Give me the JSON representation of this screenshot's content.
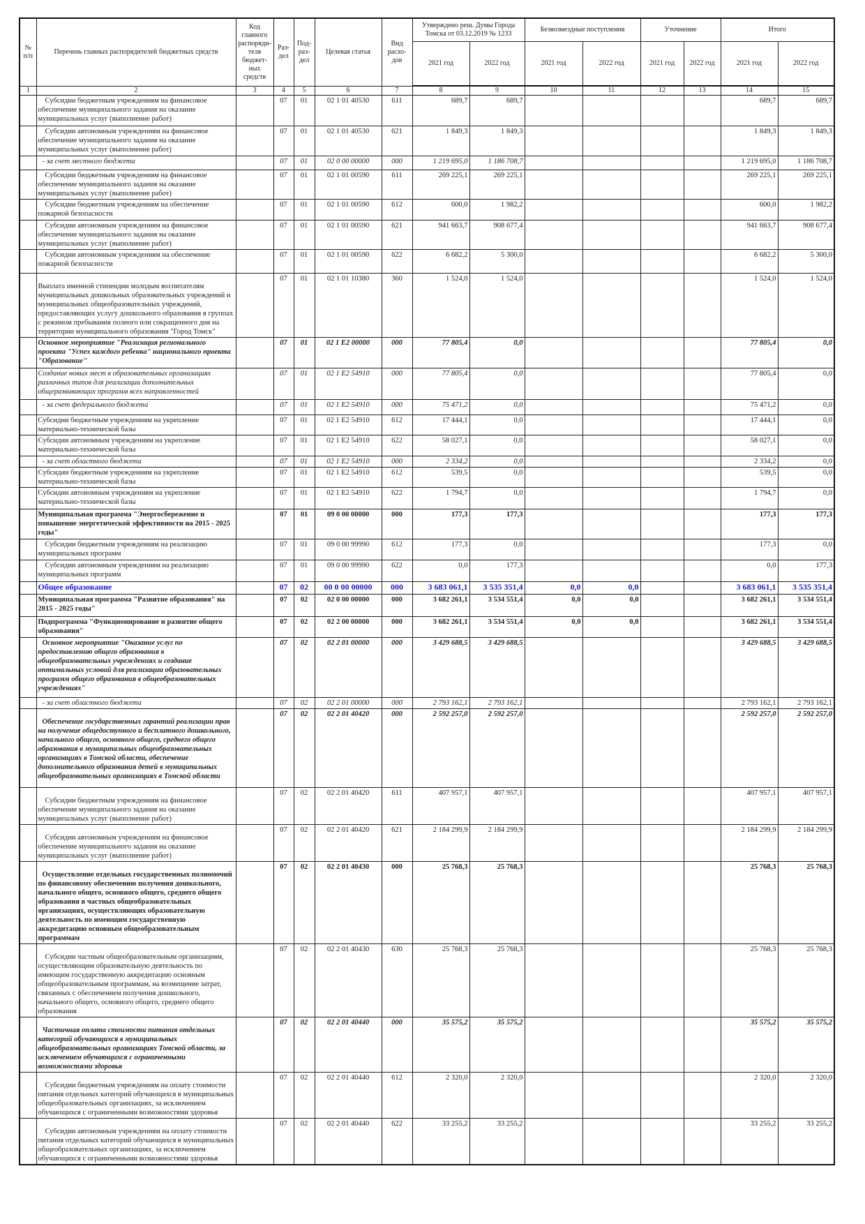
{
  "header": {
    "col1": "№ п/п",
    "col2": "Перечень главных распорядителей бюджетных средств",
    "col3": "Код главного распоряди-теля бюджет-ных средств",
    "col4": "Раз-дел",
    "col5": "Под-раз-дел",
    "col6": "Целевая статья",
    "col7": "Вид расхо-дов",
    "group_approved": "Утверждено реш. Думы Города Томска от 03.12.2019 № 1233",
    "group_free": "Безвозмездные поступления",
    "group_clarify": "Уточнение",
    "group_total": "Итого",
    "year_2021": "2021 год",
    "year_2022": "2022 год",
    "col_numbers": [
      "1",
      "2",
      "3",
      "4",
      "5",
      "6",
      "7",
      "8",
      "9",
      "10",
      "11",
      "12",
      "13",
      "14",
      "15"
    ]
  },
  "rows": [
    {
      "style": "normal",
      "indent": "ind",
      "desc": "Субсидии бюджетным учреждениям на финансовое обеспечение муниципального задания на оказание муниципальных услуг (выполнение работ)",
      "razdel": "07",
      "podrazdel": "01",
      "cs": "02 1 01 40530",
      "vr": "611",
      "v": [
        "689,7",
        "689,7",
        "",
        "",
        "",
        "",
        "689,7",
        "689,7"
      ]
    },
    {
      "style": "normal",
      "indent": "ind",
      "desc": "Субсидии автономным учреждениям на финансовое обеспечение муниципального задания на оказание муниципальных услуг (выполнение работ)",
      "razdel": "07",
      "podrazdel": "01",
      "cs": "02 1 01 40530",
      "vr": "621",
      "v": [
        "1 849,3",
        "1 849,3",
        "",
        "",
        "",
        "",
        "1 849,3",
        "1 849,3"
      ]
    },
    {
      "style": "italic",
      "indent": "ind-s",
      "desc": "- за счет местного бюджета",
      "razdel": "07",
      "podrazdel": "01",
      "cs": "02 0 00 00000",
      "vr": "000",
      "v": [
        "1 219 695,0",
        "1 186 708,7",
        "",
        "",
        "",
        "",
        "1 219 695,0",
        "1 186 708,7"
      ]
    },
    {
      "style": "normal",
      "indent": "ind",
      "desc": "Субсидии бюджетным учреждениям на финансовое обеспечение муниципального задания на оказание муниципальных услуг (выполнение работ)",
      "razdel": "07",
      "podrazdel": "01",
      "cs": "02 1 01 00590",
      "vr": "611",
      "v": [
        "269 225,1",
        "269 225,1",
        "",
        "",
        "",
        "",
        "269 225,1",
        "269 225,1"
      ]
    },
    {
      "style": "normal",
      "indent": "ind",
      "desc": "Субсидии бюджетным учреждениям на обеспечение пожарной безопасности",
      "razdel": "07",
      "podrazdel": "01",
      "cs": "02 1 01 00590",
      "vr": "612",
      "v": [
        "600,0",
        "1 982,2",
        "",
        "",
        "",
        "",
        "600,0",
        "1 982,2"
      ]
    },
    {
      "style": "normal",
      "indent": "ind",
      "desc": "Субсидии автономным учреждениям на финансовое обеспечение муниципального задания на оказание муниципальных услуг (выполнение работ)",
      "razdel": "07",
      "podrazdel": "01",
      "cs": "02 1 01 00590",
      "vr": "621",
      "v": [
        "941 663,7",
        "908 677,4",
        "",
        "",
        "",
        "",
        "941 663,7",
        "908 677,4"
      ]
    },
    {
      "style": "normal",
      "indent": "ind",
      "desc": "Субсидии автономным учреждениям на обеспечение пожарной безопасности",
      "razdel": "07",
      "podrazdel": "01",
      "cs": "02 1 01 00590",
      "vr": "622",
      "v": [
        "6 682,2",
        "5 300,0",
        "",
        "",
        "",
        "",
        "6 682,2",
        "5 300,0"
      ]
    },
    {
      "style": "normal",
      "indent": "pt",
      "desc": "Выплата именной стипендии молодым воспитателям муниципальных дошкольных образовательных учреждений и муниципальных общеобразовательных учреждений, предоставляющих услугу дошкольного образования в группах с режимом пребывания полного или сокращенного дня на территории муниципального образования \"Город Томск\"",
      "razdel": "07",
      "podrazdel": "01",
      "cs": "02 1 01 10380",
      "vr": "360",
      "v": [
        "1 524,0",
        "1 524,0",
        "",
        "",
        "",
        "",
        "1 524,0",
        "1 524,0"
      ]
    },
    {
      "style": "bolditalic",
      "indent": "",
      "desc": "Основное мероприятие \"Реализация регионального проекта \"Успех каждого ребенка\" национального проекта \"Образование\"",
      "razdel": "07",
      "podrazdel": "01",
      "cs": "02 1 E2 00000",
      "vr": "000",
      "v": [
        "77 805,4",
        "0,0",
        "",
        "",
        "",
        "",
        "77 805,4",
        "0,0"
      ]
    },
    {
      "style": "italic",
      "indent": "",
      "desc": "Создание новых мест в образовательных организациях различных типов для реализации дополнительных общеразвивающих программ всех направленностей",
      "razdel": "07",
      "podrazdel": "01",
      "cs": "02 1 E2 54910",
      "vr": "000",
      "v": [
        "77 805,4",
        "0,0",
        "",
        "",
        "",
        "",
        "77 805,4",
        "0,0"
      ]
    },
    {
      "style": "italic",
      "indent": "ind-s",
      "desc": "- за счет федерального бюджета",
      "razdel": "07",
      "podrazdel": "01",
      "cs": "02 1 E2 54910",
      "vr": "000",
      "v": [
        "75 471,2",
        "0,0",
        "",
        "",
        "",
        "",
        "75 471,2",
        "0,0"
      ]
    },
    {
      "style": "normal",
      "indent": "",
      "desc": "Субсидии бюджетным учреждениям на укрепление материально-технической базы",
      "razdel": "07",
      "podrazdel": "01",
      "cs": "02 1 E2 54910",
      "vr": "612",
      "v": [
        "17 444,1",
        "0,0",
        "",
        "",
        "",
        "",
        "17 444,1",
        "0,0"
      ]
    },
    {
      "style": "normal",
      "indent": "",
      "desc": "Субсидии автономным учреждениям на укрепление материально-технической базы",
      "razdel": "07",
      "podrazdel": "01",
      "cs": "02 1 E2 54910",
      "vr": "622",
      "v": [
        "58 027,1",
        "0,0",
        "",
        "",
        "",
        "",
        "58 027,1",
        "0,0"
      ]
    },
    {
      "style": "italic",
      "indent": "ind-s",
      "desc": "- за счет областного бюджета",
      "razdel": "07",
      "podrazdel": "01",
      "cs": "02 1 E2 54910",
      "vr": "000",
      "v": [
        "2 334,2",
        "0,0",
        "",
        "",
        "",
        "",
        "2 334,2",
        "0,0"
      ]
    },
    {
      "style": "normal",
      "indent": "",
      "desc": "Субсидии бюджетным учреждениям на укрепление материально-технической базы",
      "razdel": "07",
      "podrazdel": "01",
      "cs": "02 1 E2 54910",
      "vr": "612",
      "v": [
        "539,5",
        "0,0",
        "",
        "",
        "",
        "",
        "539,5",
        "0,0"
      ]
    },
    {
      "style": "normal",
      "indent": "",
      "desc": "Субсидии автономным учреждениям на укрепление материально-технической базы",
      "razdel": "07",
      "podrazdel": "01",
      "cs": "02 1 E2 54910",
      "vr": "622",
      "v": [
        "1 794,7",
        "0,0",
        "",
        "",
        "",
        "",
        "1 794,7",
        "0,0"
      ]
    },
    {
      "style": "bold",
      "indent": "",
      "desc": "Муниципальная программа \"Энергосбережение и повышение энергетической эффективности на 2015 - 2025 годы\"",
      "razdel": "07",
      "podrazdel": "01",
      "cs": "09 0 00 00000",
      "vr": "000",
      "v": [
        "177,3",
        "177,3",
        "",
        "",
        "",
        "",
        "177,3",
        "177,3"
      ]
    },
    {
      "style": "normal",
      "indent": "ind",
      "desc": "Субсидии бюджетным учреждениям на реализацию муниципальных программ",
      "razdel": "07",
      "podrazdel": "01",
      "cs": "09 0 00 99990",
      "vr": "612",
      "v": [
        "177,3",
        "0,0",
        "",
        "",
        "",
        "",
        "177,3",
        "0,0"
      ]
    },
    {
      "style": "normal",
      "indent": "ind",
      "desc": "Субсидии автономным учреждениям на реализацию муниципальных программ",
      "razdel": "07",
      "podrazdel": "01",
      "cs": "09 0 00 99990",
      "vr": "622",
      "v": [
        "0,0",
        "177,3",
        "",
        "",
        "",
        "",
        "0,0",
        "177,3"
      ]
    },
    {
      "style": "blue",
      "indent": "",
      "desc": "Общее образование",
      "razdel": "07",
      "podrazdel": "02",
      "cs": "00 0 00 00000",
      "vr": "000",
      "v": [
        "3 683 061,1",
        "3 535 351,4",
        "0,0",
        "0,0",
        "",
        "",
        "3 683 061,1",
        "3 535 351,4"
      ]
    },
    {
      "style": "bold",
      "indent": "",
      "desc": "Муниципальная программа \"Развитие образования\" на 2015 - 2025 годы\"",
      "razdel": "07",
      "podrazdel": "02",
      "cs": "02 0 00 00000",
      "vr": "000",
      "v": [
        "3 682 261,1",
        "3 534 551,4",
        "0,0",
        "0,0",
        "",
        "",
        "3 682 261,1",
        "3 534 551,4"
      ]
    },
    {
      "style": "bold",
      "indent": "",
      "desc": "Подпрограмма \"Функционирование и развитие общего образования\"",
      "razdel": "07",
      "podrazdel": "02",
      "cs": "02 2 00 00000",
      "vr": "000",
      "v": [
        "3 682 261,1",
        "3 534 551,4",
        "0,0",
        "0,0",
        "",
        "",
        "3 682 261,1",
        "3 534 551,4"
      ]
    },
    {
      "style": "bolditalic",
      "indent": "ind-s",
      "desc": "Основное мероприятие \"Оказание услуг по предоставлению общего образования в общеобразовательных учреждениях и создание оптимальных условий для реализации образовательных программ общего образования в общеобразовательных учреждениях\"",
      "razdel": "07",
      "podrazdel": "02",
      "cs": "02 2 01 00000",
      "vr": "000",
      "v": [
        "3 429 688,5",
        "3 429 688,5",
        "",
        "",
        "",
        "",
        "3 429 688,5",
        "3 429 688,5"
      ]
    },
    {
      "style": "italic",
      "indent": "ind-s",
      "desc": "- за счет областного бюджета",
      "razdel": "07",
      "podrazdel": "02",
      "cs": "02 2 01 00000",
      "vr": "000",
      "v": [
        "2 793 162,1",
        "2 793 162,1",
        "",
        "",
        "",
        "",
        "2 793 162,1",
        "2 793 162,1"
      ]
    },
    {
      "style": "bolditalic",
      "indent": "pt ind-s",
      "desc": "Обеспечение государственных гарантий реализации прав на получение общедоступного и бесплатного дошкольного, начального общего, основного общего, среднего общего образования в муниципальных общеобразовательных организациях в Томской области, обеспечение дополнительного образования детей в муниципальных общеобразовательных организациях в Томской области",
      "razdel": "07",
      "podrazdel": "02",
      "cs": "02 2 01 40420",
      "vr": "000",
      "v": [
        "2 592 257,0",
        "2 592 257,0",
        "",
        "",
        "",
        "",
        "2 592 257,0",
        "2 592 257,0"
      ]
    },
    {
      "style": "normal",
      "indent": "pt ind",
      "desc": "Субсидии бюджетным учреждениям на финансовое обеспечение муниципального задания на оказание муниципальных услуг (выполнение работ)",
      "razdel": "07",
      "podrazdel": "02",
      "cs": "02 2 01 40420",
      "vr": "611",
      "v": [
        "407 957,1",
        "407 957,1",
        "",
        "",
        "",
        "",
        "407 957,1",
        "407 957,1"
      ]
    },
    {
      "style": "normal",
      "indent": "pt ind",
      "desc": "Субсидии автономным учреждениям на финансовое обеспечение муниципального задания на оказание муниципальных услуг (выполнение работ)",
      "razdel": "07",
      "podrazdel": "02",
      "cs": "02 2 01 40420",
      "vr": "621",
      "v": [
        "2 184 299,9",
        "2 184 299,9",
        "",
        "",
        "",
        "",
        "2 184 299,9",
        "2 184 299,9"
      ]
    },
    {
      "style": "bold",
      "indent": "pt ind-s",
      "desc": "Осуществление отдельных государственных полномочий по финансовому обеспечению получения дошкольного, начального общего, основного общего, среднего общего образования в частных общеобразовательных организациях, осуществляющих образовательную деятельность по имеющим государственную аккредитацию основным общеобразовательным программам",
      "razdel": "07",
      "podrazdel": "02",
      "cs": "02 2 01 40430",
      "vr": "000",
      "v": [
        "25 768,3",
        "25 768,3",
        "",
        "",
        "",
        "",
        "25 768,3",
        "25 768,3"
      ]
    },
    {
      "style": "normal",
      "indent": "pt ind",
      "desc": "Субсидии частным общеобразовательным организациям, осуществляющим образовательную деятельность по имеющим государственную аккредитацию основным общеобразовательным программам, на возмещение затрат, связанных с обеспечением получения дошкольного, начального общего, основного общего, среднего общего образования",
      "razdel": "07",
      "podrazdel": "02",
      "cs": "02 2 01 40430",
      "vr": "630",
      "v": [
        "25 768,3",
        "25 768,3",
        "",
        "",
        "",
        "",
        "25 768,3",
        "25 768,3"
      ]
    },
    {
      "style": "bolditalic",
      "indent": "pt ind-s",
      "desc": "Частичная оплата стоимости питания отдельных категорий обучающихся в муниципальных общеобразовательных организациях Томской области, за исключением обучающихся с ограниченными возможностями здоровья",
      "razdel": "07",
      "podrazdel": "02",
      "cs": "02 2 01 40440",
      "vr": "000",
      "v": [
        "35 575,2",
        "35 575,2",
        "",
        "",
        "",
        "",
        "35 575,2",
        "35 575,2"
      ]
    },
    {
      "style": "normal",
      "indent": "pt ind",
      "desc": "Субсидии бюджетным учреждениям на оплату стоимости питания отдельных категорий обучающихся в муниципальных общеобразовательных организациях, за исключением обучающихся с ограниченными возможностями здоровья",
      "razdel": "07",
      "podrazdel": "02",
      "cs": "02 2 01 40440",
      "vr": "612",
      "v": [
        "2 320,0",
        "2 320,0",
        "",
        "",
        "",
        "",
        "2 320,0",
        "2 320,0"
      ]
    },
    {
      "style": "normal",
      "indent": "pt ind",
      "desc": "Субсидии автономным учреждениям на оплату стоимости питания отдельных категорий обучающихся в муниципальных общеобразовательных организациях, за исключением обучающихся с ограниченными возможностями здоровья",
      "razdel": "07",
      "podrazdel": "02",
      "cs": "02 2 01 40440",
      "vr": "622",
      "v": [
        "33 255,2",
        "33 255,2",
        "",
        "",
        "",
        "",
        "33 255,2",
        "33 255,2"
      ]
    }
  ]
}
